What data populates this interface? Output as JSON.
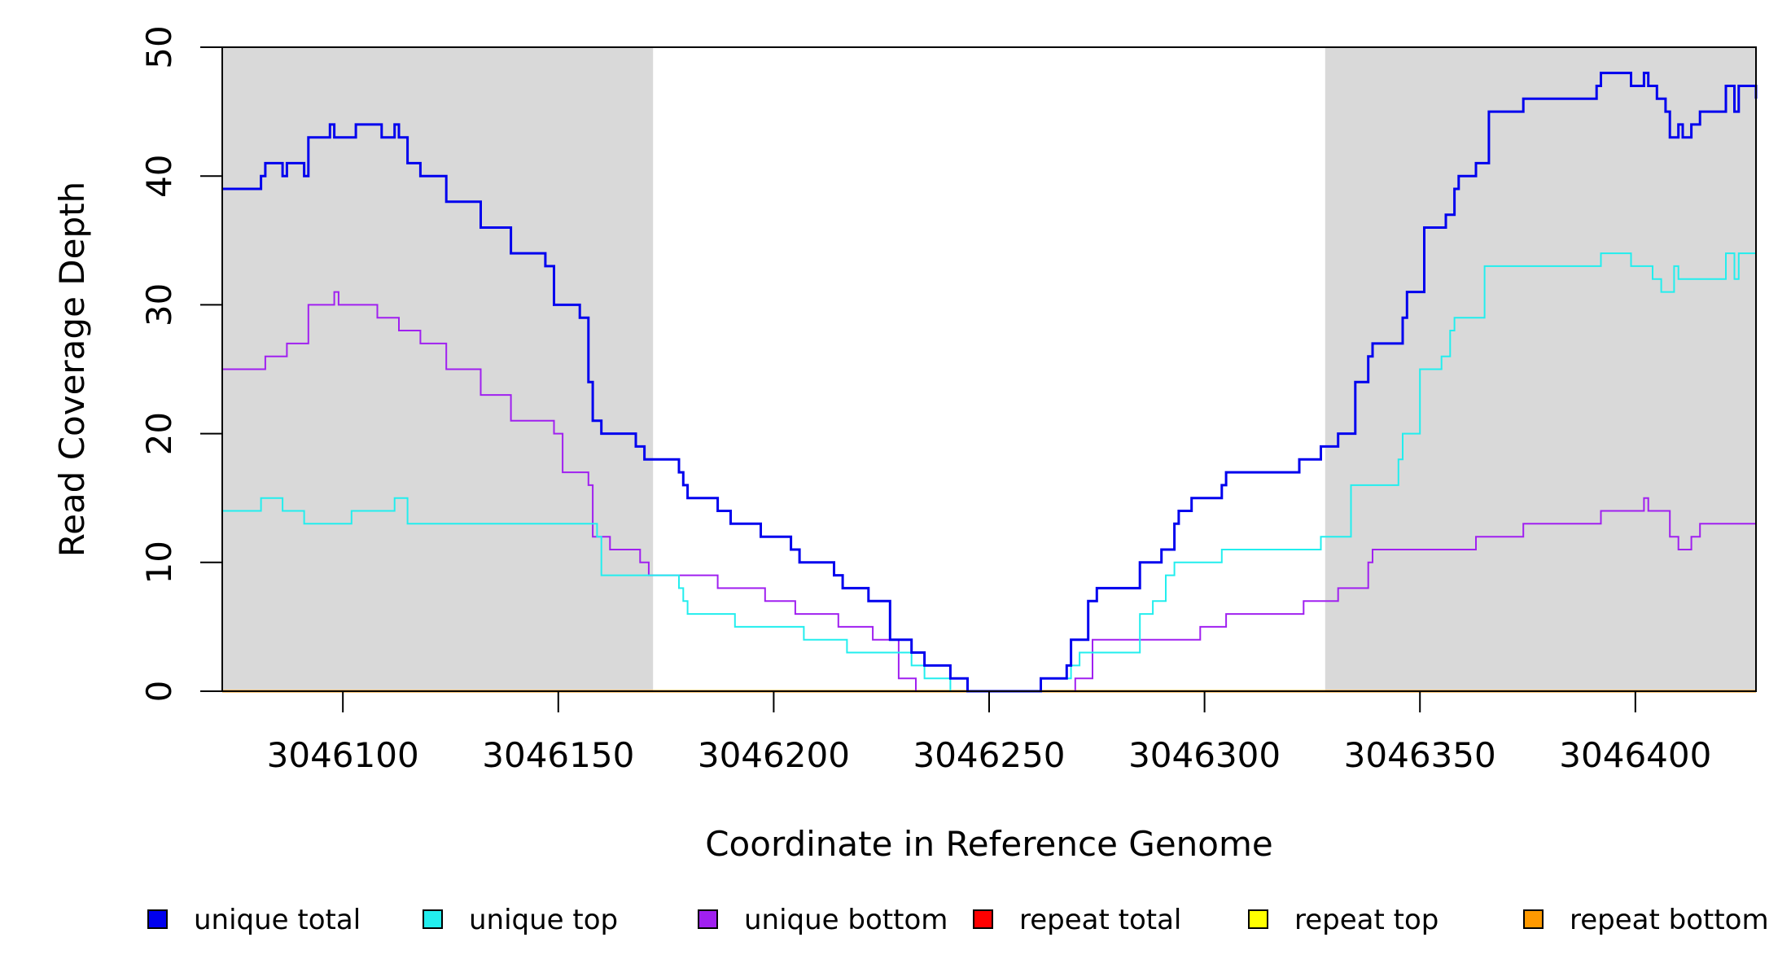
{
  "chart_data": {
    "type": "line",
    "step": true,
    "xlabel": "Coordinate in Reference Genome",
    "ylabel": "Read Coverage Depth",
    "xlim": [
      3046072,
      3046428
    ],
    "ylim": [
      0,
      50
    ],
    "x_ticks": [
      {
        "value": 3046100,
        "label": "3046100"
      },
      {
        "value": 3046150,
        "label": "3046150"
      },
      {
        "value": 3046200,
        "label": "3046200"
      },
      {
        "value": 3046250,
        "label": "3046250"
      },
      {
        "value": 3046300,
        "label": "3046300"
      },
      {
        "value": 3046350,
        "label": "3046350"
      },
      {
        "value": 3046400,
        "label": "3046400"
      }
    ],
    "y_ticks": [
      {
        "value": 0,
        "label": "0"
      },
      {
        "value": 10,
        "label": "10"
      },
      {
        "value": 20,
        "label": "20"
      },
      {
        "value": 30,
        "label": "30"
      },
      {
        "value": 40,
        "label": "40"
      },
      {
        "value": 50,
        "label": "50"
      }
    ],
    "shaded_regions": [
      {
        "from": 3046072,
        "to": 3046172,
        "color": "#d9d9d9"
      },
      {
        "from": 3046328,
        "to": 3046428,
        "color": "#d9d9d9"
      }
    ],
    "legend_position": "bottom",
    "series": [
      {
        "name": "unique total",
        "color": "#0000ee",
        "width": 3,
        "points": [
          [
            3046072,
            39
          ],
          [
            3046081,
            40
          ],
          [
            3046082,
            41
          ],
          [
            3046086,
            40
          ],
          [
            3046087,
            41
          ],
          [
            3046091,
            40
          ],
          [
            3046092,
            43
          ],
          [
            3046097,
            44
          ],
          [
            3046098,
            43
          ],
          [
            3046103,
            44
          ],
          [
            3046109,
            43
          ],
          [
            3046112,
            44
          ],
          [
            3046113,
            43
          ],
          [
            3046115,
            41
          ],
          [
            3046118,
            40
          ],
          [
            3046124,
            38
          ],
          [
            3046132,
            36
          ],
          [
            3046139,
            34
          ],
          [
            3046147,
            33
          ],
          [
            3046149,
            30
          ],
          [
            3046155,
            29
          ],
          [
            3046157,
            24
          ],
          [
            3046158,
            21
          ],
          [
            3046160,
            20
          ],
          [
            3046168,
            19
          ],
          [
            3046170,
            18
          ],
          [
            3046178,
            17
          ],
          [
            3046179,
            16
          ],
          [
            3046180,
            15
          ],
          [
            3046187,
            14
          ],
          [
            3046190,
            13
          ],
          [
            3046197,
            12
          ],
          [
            3046204,
            11
          ],
          [
            3046206,
            10
          ],
          [
            3046214,
            9
          ],
          [
            3046216,
            8
          ],
          [
            3046222,
            7
          ],
          [
            3046227,
            4
          ],
          [
            3046232,
            3
          ],
          [
            3046235,
            2
          ],
          [
            3046241,
            1
          ],
          [
            3046245,
            0
          ],
          [
            3046262,
            1
          ],
          [
            3046268,
            2
          ],
          [
            3046269,
            4
          ],
          [
            3046273,
            7
          ],
          [
            3046275,
            8
          ],
          [
            3046285,
            10
          ],
          [
            3046290,
            11
          ],
          [
            3046293,
            13
          ],
          [
            3046294,
            14
          ],
          [
            3046297,
            15
          ],
          [
            3046304,
            16
          ],
          [
            3046305,
            17
          ],
          [
            3046322,
            18
          ],
          [
            3046327,
            19
          ],
          [
            3046331,
            20
          ],
          [
            3046335,
            24
          ],
          [
            3046338,
            26
          ],
          [
            3046339,
            27
          ],
          [
            3046346,
            29
          ],
          [
            3046347,
            31
          ],
          [
            3046351,
            36
          ],
          [
            3046356,
            37
          ],
          [
            3046358,
            39
          ],
          [
            3046359,
            40
          ],
          [
            3046363,
            41
          ],
          [
            3046366,
            45
          ],
          [
            3046374,
            46
          ],
          [
            3046391,
            47
          ],
          [
            3046392,
            48
          ],
          [
            3046399,
            47
          ],
          [
            3046402,
            48
          ],
          [
            3046403,
            47
          ],
          [
            3046405,
            46
          ],
          [
            3046407,
            45
          ],
          [
            3046408,
            43
          ],
          [
            3046410,
            44
          ],
          [
            3046411,
            43
          ],
          [
            3046413,
            44
          ],
          [
            3046415,
            45
          ],
          [
            3046421,
            47
          ],
          [
            3046423,
            45
          ],
          [
            3046424,
            47
          ],
          [
            3046428,
            46
          ]
        ]
      },
      {
        "name": "unique top",
        "color": "#22eeee",
        "width": 2,
        "points": [
          [
            3046072,
            14
          ],
          [
            3046081,
            15
          ],
          [
            3046086,
            14
          ],
          [
            3046091,
            13
          ],
          [
            3046102,
            14
          ],
          [
            3046112,
            15
          ],
          [
            3046115,
            13
          ],
          [
            3046159,
            12
          ],
          [
            3046160,
            9
          ],
          [
            3046178,
            8
          ],
          [
            3046179,
            7
          ],
          [
            3046180,
            6
          ],
          [
            3046191,
            5
          ],
          [
            3046207,
            4
          ],
          [
            3046217,
            3
          ],
          [
            3046232,
            2
          ],
          [
            3046235,
            1
          ],
          [
            3046241,
            0
          ],
          [
            3046262,
            1
          ],
          [
            3046269,
            2
          ],
          [
            3046271,
            3
          ],
          [
            3046285,
            6
          ],
          [
            3046288,
            7
          ],
          [
            3046291,
            9
          ],
          [
            3046293,
            10
          ],
          [
            3046304,
            11
          ],
          [
            3046327,
            12
          ],
          [
            3046334,
            16
          ],
          [
            3046345,
            18
          ],
          [
            3046346,
            20
          ],
          [
            3046350,
            25
          ],
          [
            3046355,
            26
          ],
          [
            3046357,
            28
          ],
          [
            3046358,
            29
          ],
          [
            3046365,
            33
          ],
          [
            3046392,
            34
          ],
          [
            3046399,
            33
          ],
          [
            3046404,
            32
          ],
          [
            3046406,
            31
          ],
          [
            3046409,
            33
          ],
          [
            3046410,
            32
          ],
          [
            3046421,
            34
          ],
          [
            3046423,
            32
          ],
          [
            3046424,
            34
          ],
          [
            3046428,
            33
          ]
        ]
      },
      {
        "name": "unique bottom",
        "color": "#a020f0",
        "width": 2,
        "points": [
          [
            3046072,
            25
          ],
          [
            3046082,
            26
          ],
          [
            3046087,
            27
          ],
          [
            3046092,
            30
          ],
          [
            3046098,
            31
          ],
          [
            3046099,
            30
          ],
          [
            3046108,
            29
          ],
          [
            3046113,
            28
          ],
          [
            3046118,
            27
          ],
          [
            3046124,
            25
          ],
          [
            3046132,
            23
          ],
          [
            3046139,
            21
          ],
          [
            3046149,
            20
          ],
          [
            3046151,
            17
          ],
          [
            3046157,
            16
          ],
          [
            3046158,
            12
          ],
          [
            3046162,
            11
          ],
          [
            3046169,
            10
          ],
          [
            3046171,
            9
          ],
          [
            3046187,
            8
          ],
          [
            3046198,
            7
          ],
          [
            3046205,
            6
          ],
          [
            3046215,
            5
          ],
          [
            3046223,
            4
          ],
          [
            3046229,
            1
          ],
          [
            3046233,
            0
          ],
          [
            3046262,
            0
          ],
          [
            3046270,
            1
          ],
          [
            3046274,
            4
          ],
          [
            3046299,
            5
          ],
          [
            3046305,
            6
          ],
          [
            3046323,
            7
          ],
          [
            3046331,
            8
          ],
          [
            3046338,
            10
          ],
          [
            3046339,
            11
          ],
          [
            3046363,
            12
          ],
          [
            3046374,
            13
          ],
          [
            3046392,
            14
          ],
          [
            3046402,
            15
          ],
          [
            3046403,
            14
          ],
          [
            3046408,
            12
          ],
          [
            3046410,
            11
          ],
          [
            3046413,
            12
          ],
          [
            3046415,
            13
          ],
          [
            3046428,
            13
          ]
        ]
      },
      {
        "name": "repeat total",
        "color": "#ff0000",
        "width": 2,
        "points": [
          [
            3046072,
            0
          ],
          [
            3046428,
            0
          ]
        ]
      },
      {
        "name": "repeat top",
        "color": "#ffff00",
        "width": 2,
        "points": [
          [
            3046072,
            0
          ],
          [
            3046428,
            0
          ]
        ]
      },
      {
        "name": "repeat bottom",
        "color": "#ff9900",
        "width": 3,
        "points": [
          [
            3046072,
            0
          ],
          [
            3046428,
            0
          ]
        ]
      }
    ],
    "legend": [
      {
        "label": "unique total",
        "color": "#0000ee"
      },
      {
        "label": "unique top",
        "color": "#22eeee"
      },
      {
        "label": "unique bottom",
        "color": "#a020f0"
      },
      {
        "label": "repeat total",
        "color": "#ff0000"
      },
      {
        "label": "repeat top",
        "color": "#ffff00"
      },
      {
        "label": "repeat bottom",
        "color": "#ff9900"
      }
    ]
  }
}
